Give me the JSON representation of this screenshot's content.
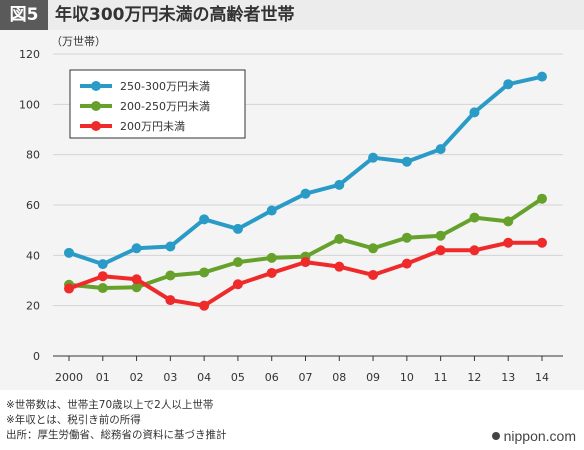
{
  "header": {
    "badge": "図5",
    "title": "年収300万円未満の高齢者世帯"
  },
  "footer": {
    "notes": [
      "※世帯数は、世帯主70歳以上で2人以上世帯",
      "※年収とは、税引き前の所得",
      "出所：厚生労働省、総務省の資料に基づき推計"
    ],
    "credit": "nippon.com"
  },
  "chart_data": {
    "type": "line",
    "title": "年収300万円未満の高齢者世帯",
    "xlabel": "",
    "ylabel": "（万世帯）",
    "ylim": [
      0,
      120
    ],
    "yticks": [
      "0",
      "20",
      "40",
      "60",
      "80",
      "100",
      "120"
    ],
    "categories": [
      "2000",
      "01",
      "02",
      "03",
      "04",
      "05",
      "06",
      "07",
      "08",
      "09",
      "10",
      "11",
      "12",
      "13",
      "14"
    ],
    "grid": true,
    "legend_position": "top-left",
    "series": [
      {
        "name": "250-300万円未満",
        "color": "#2a9bc7",
        "values": [
          41,
          36.5,
          42.8,
          43.5,
          54.3,
          50.5,
          57.8,
          64.5,
          68,
          78.8,
          77.2,
          82.2,
          96.8,
          108,
          111
        ]
      },
      {
        "name": "200-250万円未満",
        "color": "#66a12b",
        "values": [
          28.3,
          27,
          27.3,
          32,
          33.2,
          37.3,
          39,
          39.5,
          46.5,
          42.8,
          47,
          47.8,
          55,
          53.5,
          62.5
        ]
      },
      {
        "name": "200万円未満",
        "color": "#ee2a2a",
        "values": [
          26.8,
          31.7,
          30.5,
          22.2,
          20,
          28.5,
          33,
          37.3,
          35.5,
          32.2,
          36.7,
          42,
          42,
          45,
          45
        ]
      }
    ]
  }
}
